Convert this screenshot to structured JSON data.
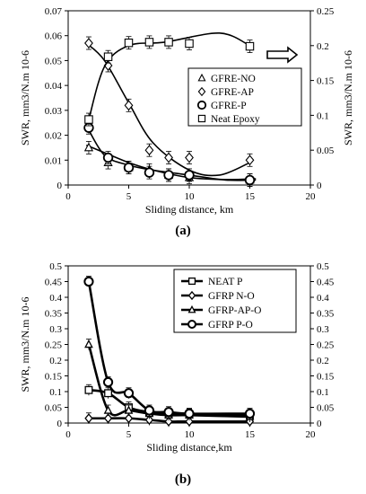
{
  "chart_data": [
    {
      "type": "scatter",
      "panel": "(a)",
      "xlabel": "Sliding distance, km",
      "ylabel": "SWR, mm3/N.m 10-6",
      "ylabel_right": "SWR, mm3/N.m 10-6",
      "xlim": [
        0,
        20
      ],
      "ylim": [
        0,
        0.07
      ],
      "ylim_right": [
        0,
        0.25
      ],
      "x_ticks": [
        "0",
        "5",
        "10",
        "15",
        "20"
      ],
      "y_ticks": [
        "0",
        "0.01",
        "0.02",
        "0.03",
        "0.04",
        "0.05",
        "0.06",
        "0.07"
      ],
      "y_ticks_right": [
        "0",
        "0.05",
        "0.1",
        "0.15",
        "0.2",
        "0.25"
      ],
      "legend_position": "right",
      "arrow": "right",
      "series": [
        {
          "name": "GFRE-NO",
          "marker": "triangle",
          "axis": "left",
          "x": [
            1.7,
            3.3,
            5,
            6.7,
            8.3,
            10,
            15
          ],
          "y": [
            0.015,
            0.009,
            0.007,
            0.006,
            0.004,
            0.003,
            0.002
          ],
          "curve": [
            [
              1.5,
              0.016
            ],
            [
              3,
              0.013
            ],
            [
              5,
              0.009
            ],
            [
              7,
              0.006
            ],
            [
              10,
              0.003
            ],
            [
              13,
              0.0022
            ],
            [
              15.5,
              0.0025
            ]
          ]
        },
        {
          "name": "GFRE-AP",
          "marker": "diamond",
          "axis": "left",
          "x": [
            1.7,
            3.3,
            5,
            6.7,
            8.3,
            10,
            15
          ],
          "y": [
            0.057,
            0.048,
            0.032,
            0.014,
            0.011,
            0.011,
            0.01
          ],
          "curve": [
            [
              1.5,
              0.057
            ],
            [
              3,
              0.05
            ],
            [
              5,
              0.033
            ],
            [
              7,
              0.017
            ],
            [
              10,
              0.006
            ],
            [
              12.5,
              0.004
            ],
            [
              15,
              0.009
            ]
          ]
        },
        {
          "name": "GFRE-P",
          "marker": "circle",
          "axis": "left",
          "x": [
            1.7,
            3.3,
            5,
            6.7,
            8.3,
            10,
            15
          ],
          "y": [
            0.023,
            0.011,
            0.007,
            0.005,
            0.004,
            0.004,
            0.002
          ],
          "curve": [
            [
              1.5,
              0.024
            ],
            [
              3,
              0.012
            ],
            [
              5,
              0.008
            ],
            [
              7,
              0.006
            ],
            [
              10,
              0.004
            ],
            [
              13,
              0.002
            ],
            [
              15.5,
              0.002
            ]
          ]
        },
        {
          "name": "Neat Epoxy",
          "marker": "square",
          "axis": "right",
          "x": [
            1.7,
            3.3,
            5,
            6.7,
            8.3,
            10,
            15
          ],
          "y": [
            0.094,
            0.184,
            0.204,
            0.205,
            0.205,
            0.203,
            0.199
          ],
          "curve": [
            [
              1.7,
              0.094
            ],
            [
              3,
              0.17
            ],
            [
              5,
              0.2
            ],
            [
              8,
              0.205
            ],
            [
              12.5,
              0.218
            ],
            [
              15,
              0.2
            ]
          ]
        }
      ]
    },
    {
      "type": "line",
      "panel": "(b)",
      "xlabel": "Sliding distance,km",
      "ylabel": "SWR, mm3/N.m  10-6",
      "xlim": [
        0,
        20
      ],
      "ylim": [
        0,
        0.5
      ],
      "ylim_right": [
        0,
        0.5
      ],
      "x_ticks": [
        "0",
        "5",
        "10",
        "15",
        "20"
      ],
      "y_ticks": [
        "0",
        "0.05",
        "0.1",
        "0.15",
        "0.2",
        "0.25",
        "0.3",
        "0.35",
        "0.4",
        "0.45",
        "0.5"
      ],
      "y_ticks_right": [
        "0",
        "0.05",
        "0.1",
        "0.15",
        "0.2",
        "0.25",
        "0.3",
        "0.35",
        "0.4",
        "0.45",
        "0.5"
      ],
      "legend_position": "top-right",
      "x": [
        1.7,
        3.3,
        5,
        6.7,
        8.3,
        10,
        15
      ],
      "series": [
        {
          "name": "NEAT P",
          "marker": "square",
          "values": [
            0.105,
            0.095,
            0.05,
            0.035,
            0.03,
            0.028,
            0.025
          ]
        },
        {
          "name": "GFRP N-O",
          "marker": "diamond",
          "values": [
            0.015,
            0.015,
            0.015,
            0.01,
            0.005,
            0.005,
            0.005
          ]
        },
        {
          "name": "GFRP-AP-O",
          "marker": "triangle",
          "values": [
            0.25,
            0.04,
            0.04,
            0.03,
            0.025,
            0.025,
            0.02
          ]
        },
        {
          "name": "GFRP P-O",
          "marker": "circle",
          "values": [
            0.45,
            0.13,
            0.095,
            0.04,
            0.035,
            0.03,
            0.03
          ]
        }
      ]
    }
  ]
}
